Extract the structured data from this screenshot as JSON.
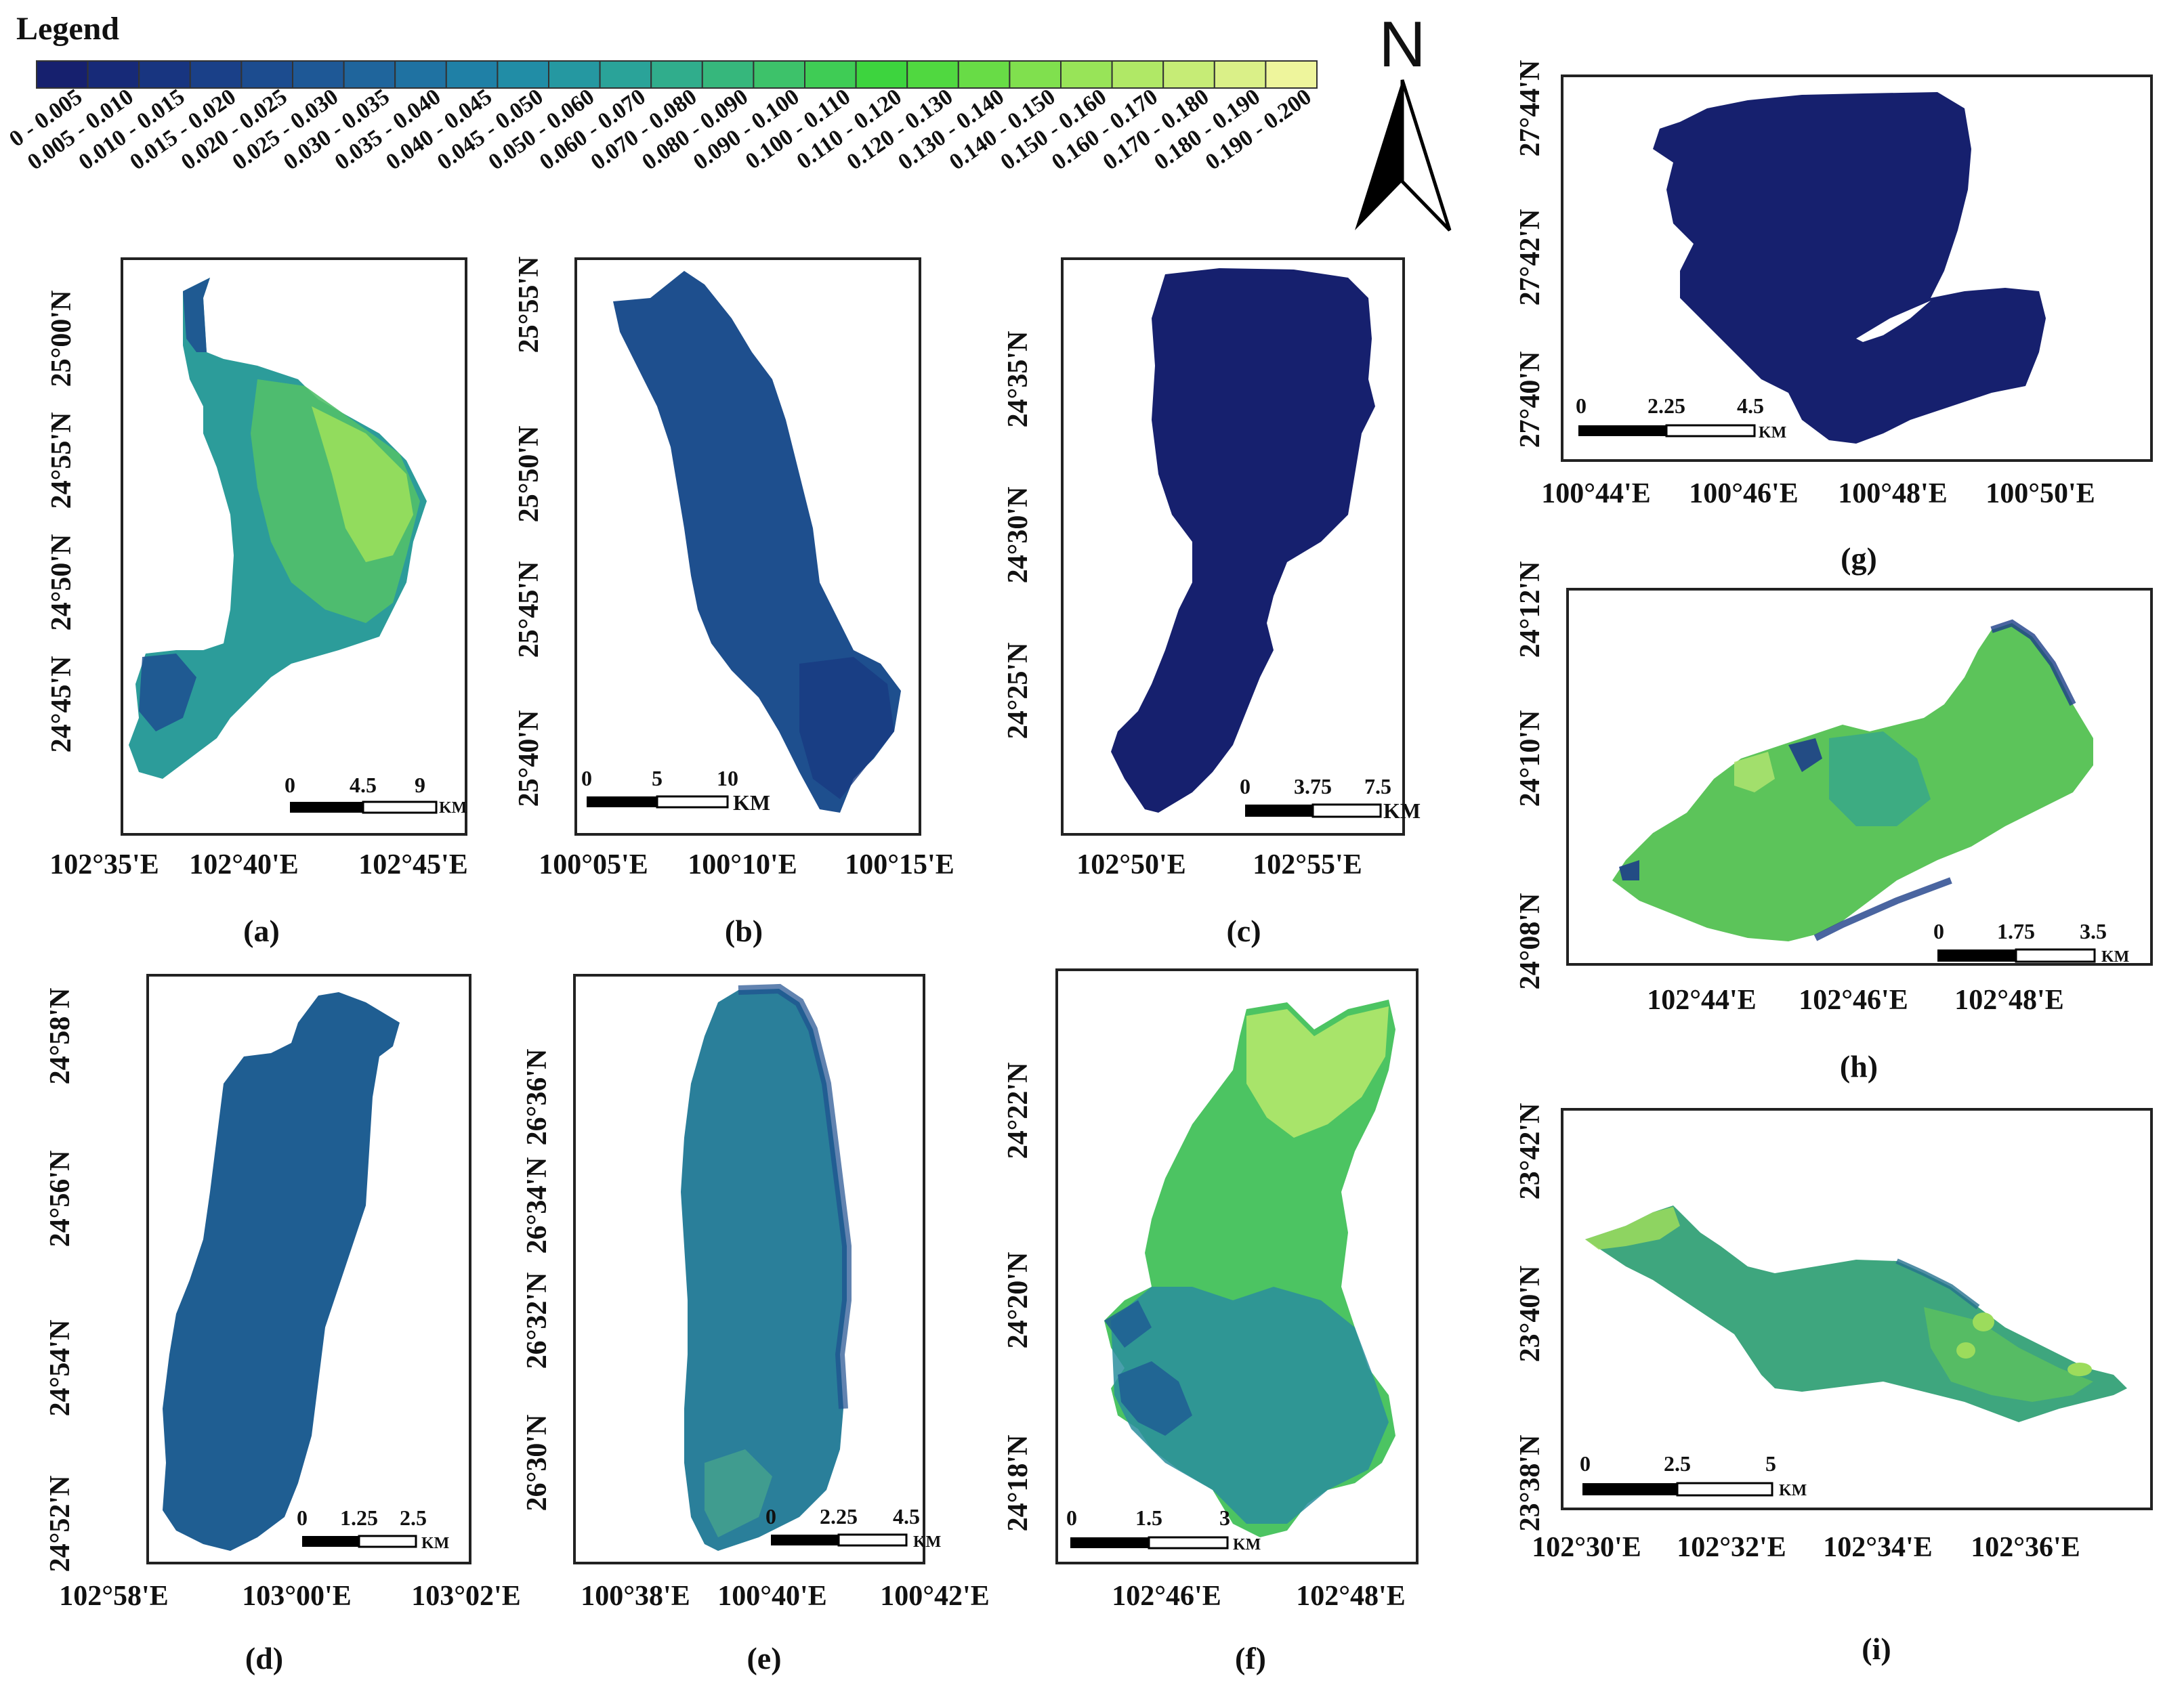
{
  "legend": {
    "title": "Legend",
    "classes": [
      {
        "label": "0 - 0.005",
        "color": "#16206e"
      },
      {
        "label": "0.005 - 0.010",
        "color": "#172a78"
      },
      {
        "label": "0.010 - 0.015",
        "color": "#183580"
      },
      {
        "label": "0.015 - 0.020",
        "color": "#1a4088"
      },
      {
        "label": "0.020 - 0.025",
        "color": "#1c4c8f"
      },
      {
        "label": "0.025 - 0.030",
        "color": "#1e5896"
      },
      {
        "label": "0.030 - 0.035",
        "color": "#1f659c"
      },
      {
        "label": "0.035 - 0.040",
        "color": "#1f72a2"
      },
      {
        "label": "0.040 - 0.045",
        "color": "#1f80a6"
      },
      {
        "label": "0.045 - 0.050",
        "color": "#218da6"
      },
      {
        "label": "0.050 - 0.060",
        "color": "#2598a1"
      },
      {
        "label": "0.060 - 0.070",
        "color": "#2aa399"
      },
      {
        "label": "0.070 - 0.080",
        "color": "#30ad8c"
      },
      {
        "label": "0.080 - 0.090",
        "color": "#36b77c"
      },
      {
        "label": "0.090 - 0.100",
        "color": "#3dc26a"
      },
      {
        "label": "0.100 - 0.110",
        "color": "#3fcc55"
      },
      {
        "label": "0.110 - 0.120",
        "color": "#3dd43e"
      },
      {
        "label": "0.120 - 0.130",
        "color": "#50d840"
      },
      {
        "label": "0.130 - 0.140",
        "color": "#68dc46"
      },
      {
        "label": "0.140 - 0.150",
        "color": "#80e04e"
      },
      {
        "label": "0.150 - 0.160",
        "color": "#98e458"
      },
      {
        "label": "0.160 - 0.170",
        "color": "#b0e866"
      },
      {
        "label": "0.170 - 0.180",
        "color": "#c6ec76"
      },
      {
        "label": "0.180 - 0.190",
        "color": "#daf088"
      },
      {
        "label": "0.190 - 0.200",
        "color": "#eef59c"
      }
    ]
  },
  "north_arrow": {
    "label": "N"
  },
  "panels": [
    {
      "id": "a",
      "caption": "(a)",
      "lat_labels": [
        "25°00'N",
        "24°55'N",
        "24°50'N",
        "24°45'N"
      ],
      "lon_labels": [
        "102°35'E",
        "102°40'E",
        "102°45'E"
      ],
      "scale": {
        "ticks": [
          "0",
          "4.5",
          "9"
        ],
        "unit": "KM"
      },
      "colors": {
        "base": "#2c9c9a",
        "mid": "#52c06a",
        "light": "#9fe25a",
        "dark": "#1d4f90"
      }
    },
    {
      "id": "b",
      "caption": "(b)",
      "lat_labels": [
        "25°55'N",
        "25°50'N",
        "25°45'N",
        "25°40'N"
      ],
      "lon_labels": [
        "100°05'E",
        "100°10'E",
        "100°15'E"
      ],
      "scale": {
        "ticks": [
          "0",
          "5",
          "10"
        ],
        "unit": "KM"
      },
      "colors": {
        "base": "#1e4f8e",
        "dark": "#183a82"
      }
    },
    {
      "id": "c",
      "caption": "(c)",
      "lat_labels": [
        "24°35'N",
        "24°30'N",
        "24°25'N"
      ],
      "lon_labels": [
        "102°50'E",
        "102°55'E"
      ],
      "scale": {
        "ticks": [
          "0",
          "3.75",
          "7.5"
        ],
        "unit": "KM"
      },
      "colors": {
        "base": "#16206e"
      }
    },
    {
      "id": "d",
      "caption": "(d)",
      "lat_labels": [
        "24°58'N",
        "24°56'N",
        "24°54'N",
        "24°52'N"
      ],
      "lon_labels": [
        "102°58'E",
        "103°00'E",
        "103°02'E"
      ],
      "scale": {
        "ticks": [
          "0",
          "1.25",
          "2.5"
        ],
        "unit": "KM"
      },
      "colors": {
        "base": "#1f5e92"
      }
    },
    {
      "id": "e",
      "caption": "(e)",
      "lat_labels": [
        "26°36'N",
        "26°34'N",
        "26°32'N",
        "26°30'N"
      ],
      "lon_labels": [
        "100°38'E",
        "100°40'E",
        "100°42'E"
      ],
      "scale": {
        "ticks": [
          "0",
          "2.25",
          "4.5"
        ],
        "unit": "KM"
      },
      "colors": {
        "base": "#2a7f9a",
        "dark": "#1e4f8e",
        "light": "#4aa88a"
      }
    },
    {
      "id": "f",
      "caption": "(f)",
      "lat_labels": [
        "24°22'N",
        "24°20'N",
        "24°18'N"
      ],
      "lon_labels": [
        "102°46'E",
        "102°48'E"
      ],
      "scale": {
        "ticks": [
          "0",
          "1.5",
          "3"
        ],
        "unit": "KM"
      },
      "colors": {
        "base": "#4cc462",
        "light": "#b8ea6c",
        "dark": "#1f5e94",
        "mid": "#2a8e9e"
      }
    },
    {
      "id": "g",
      "caption": "(g)",
      "lat_labels": [
        "27°44'N",
        "27°42'N",
        "27°40'N"
      ],
      "lon_labels": [
        "100°44'E",
        "100°46'E",
        "100°48'E",
        "100°50'E"
      ],
      "scale": {
        "ticks": [
          "0",
          "2.25",
          "4.5"
        ],
        "unit": "KM"
      },
      "colors": {
        "base": "#16206e"
      }
    },
    {
      "id": "h",
      "caption": "(h)",
      "lat_labels": [
        "24°12'N",
        "24°10'N",
        "24°08'N"
      ],
      "lon_labels": [
        "102°44'E",
        "102°46'E",
        "102°48'E"
      ],
      "scale": {
        "ticks": [
          "0",
          "1.75",
          "3.5"
        ],
        "unit": "KM"
      },
      "colors": {
        "base": "#5cc45a",
        "dark": "#1d3f88",
        "mid": "#36a68c",
        "light": "#b4e670"
      }
    },
    {
      "id": "i",
      "caption": "(i)",
      "lat_labels": [
        "23°42'N",
        "23°40'N",
        "23°38'N"
      ],
      "lon_labels": [
        "102°30'E",
        "102°32'E",
        "102°34'E",
        "102°36'E"
      ],
      "scale": {
        "ticks": [
          "0",
          "2.5",
          "5"
        ],
        "unit": "KM"
      },
      "colors": {
        "base": "#3ea67e",
        "light": "#9cdc5c",
        "mid": "#5cc25e",
        "dark": "#26728e"
      }
    }
  ]
}
